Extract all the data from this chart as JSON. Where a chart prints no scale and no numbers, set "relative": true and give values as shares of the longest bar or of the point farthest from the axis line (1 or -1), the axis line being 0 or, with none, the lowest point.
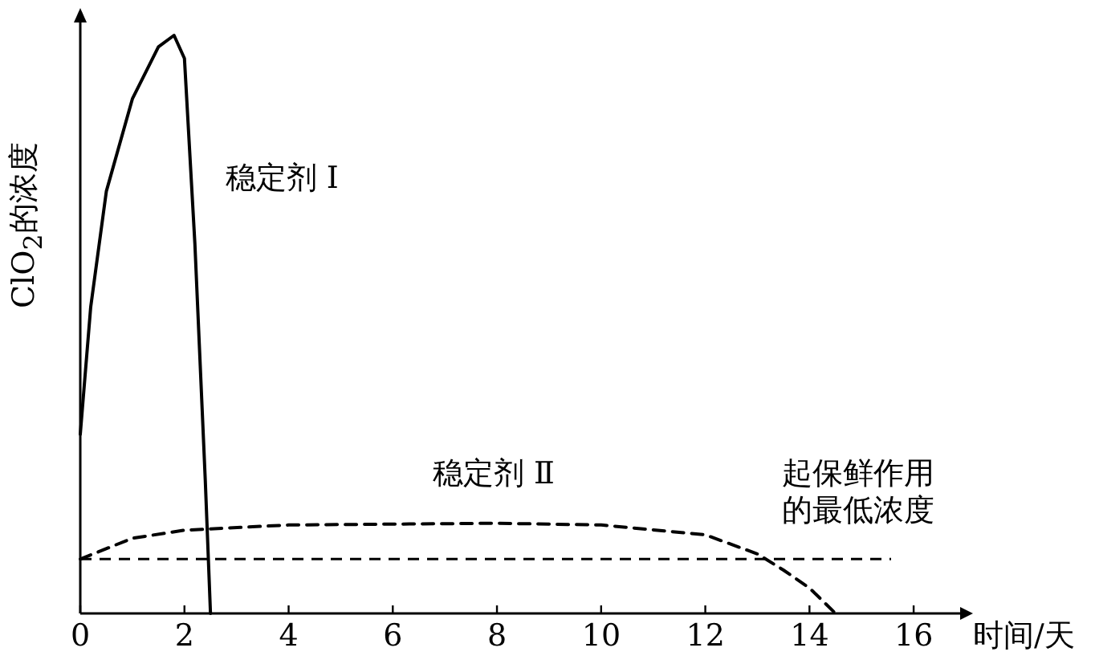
{
  "chart_data": {
    "type": "line",
    "relative": true,
    "xlabel": "时间/天",
    "ylabel": "ClO$_{2}$的浓度",
    "xlim": [
      0,
      16.8
    ],
    "xticks": [
      0,
      2,
      4,
      6,
      8,
      10,
      12,
      14,
      16
    ],
    "grid": false,
    "series": [
      {
        "name": "稳定剂 I",
        "color": "#000000",
        "line_style": "solid",
        "x": [
          0,
          0.2,
          0.5,
          1,
          1.5,
          1.8,
          2,
          2.2,
          2.4,
          2.5
        ],
        "values": [
          0.31,
          0.53,
          0.73,
          0.89,
          0.98,
          1,
          0.96,
          0.64,
          0.23,
          0
        ]
      },
      {
        "name": "稳定剂 Ⅱ",
        "color": "#000000",
        "line_style": "dashed",
        "x": [
          0,
          1,
          2,
          4,
          8,
          10,
          12,
          13,
          13.5,
          14,
          14.5
        ],
        "values": [
          0.094,
          0.13,
          0.144,
          0.153,
          0.156,
          0.153,
          0.136,
          0.103,
          0.075,
          0.044,
          0
        ]
      }
    ],
    "ref_lines": [
      {
        "axis": "y",
        "value": 0.094,
        "label": "起保鲜作用的最低浓度",
        "line_style": "dashed",
        "color": "#000000"
      }
    ]
  }
}
